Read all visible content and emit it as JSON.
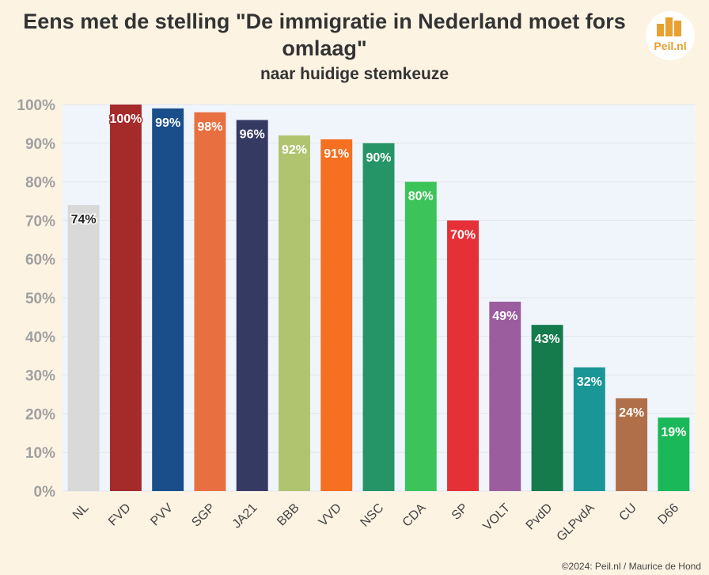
{
  "title_line1": "Eens met de stelling \"De immigratie in Nederland moet fors",
  "title_line2": "omlaag\"",
  "subtitle": "naar huidige stemkeuze",
  "logo_text": "Peil.nl",
  "credit": "©2024: Peil.nl / Maurice de Hond",
  "chart_data": {
    "type": "bar",
    "title": "Eens met de stelling \"De immigratie in Nederland moet fors omlaag\"",
    "subtitle": "naar huidige stemkeuze",
    "categories": [
      "NL",
      "FVD",
      "PVV",
      "SGP",
      "JA21",
      "BBB",
      "VVD",
      "NSC",
      "CDA",
      "SP",
      "VOLT",
      "PvdD",
      "GLPvdA",
      "CU",
      "D66"
    ],
    "values": [
      74,
      100,
      99,
      98,
      96,
      92,
      91,
      90,
      80,
      70,
      49,
      43,
      32,
      24,
      19
    ],
    "value_labels": [
      "74%",
      "100%",
      "99%",
      "98%",
      "96%",
      "92%",
      "91%",
      "90%",
      "80%",
      "70%",
      "49%",
      "43%",
      "32%",
      "24%",
      "19%"
    ],
    "colors": [
      "#d9d9d9",
      "#a52a2a",
      "#1a4e8a",
      "#e87040",
      "#353a62",
      "#b0c470",
      "#f57020",
      "#259466",
      "#3cc35a",
      "#e53038",
      "#9b5d9e",
      "#157a4c",
      "#1a9696",
      "#b06f48",
      "#1ab858"
    ],
    "label_colors": [
      "#222222",
      "#ffffff",
      "#ffffff",
      "#ffffff",
      "#ffffff",
      "#ffffff",
      "#ffffff",
      "#ffffff",
      "#ffffff",
      "#ffffff",
      "#ffffff",
      "#ffffff",
      "#ffffff",
      "#ffffff",
      "#ffffff"
    ],
    "ytick_labels": [
      "0%",
      "10%",
      "20%",
      "30%",
      "40%",
      "50%",
      "60%",
      "70%",
      "80%",
      "90%",
      "100%"
    ],
    "ylim": [
      0,
      100
    ],
    "xlabel": "",
    "ylabel": "",
    "grid": true,
    "legend": "none"
  }
}
